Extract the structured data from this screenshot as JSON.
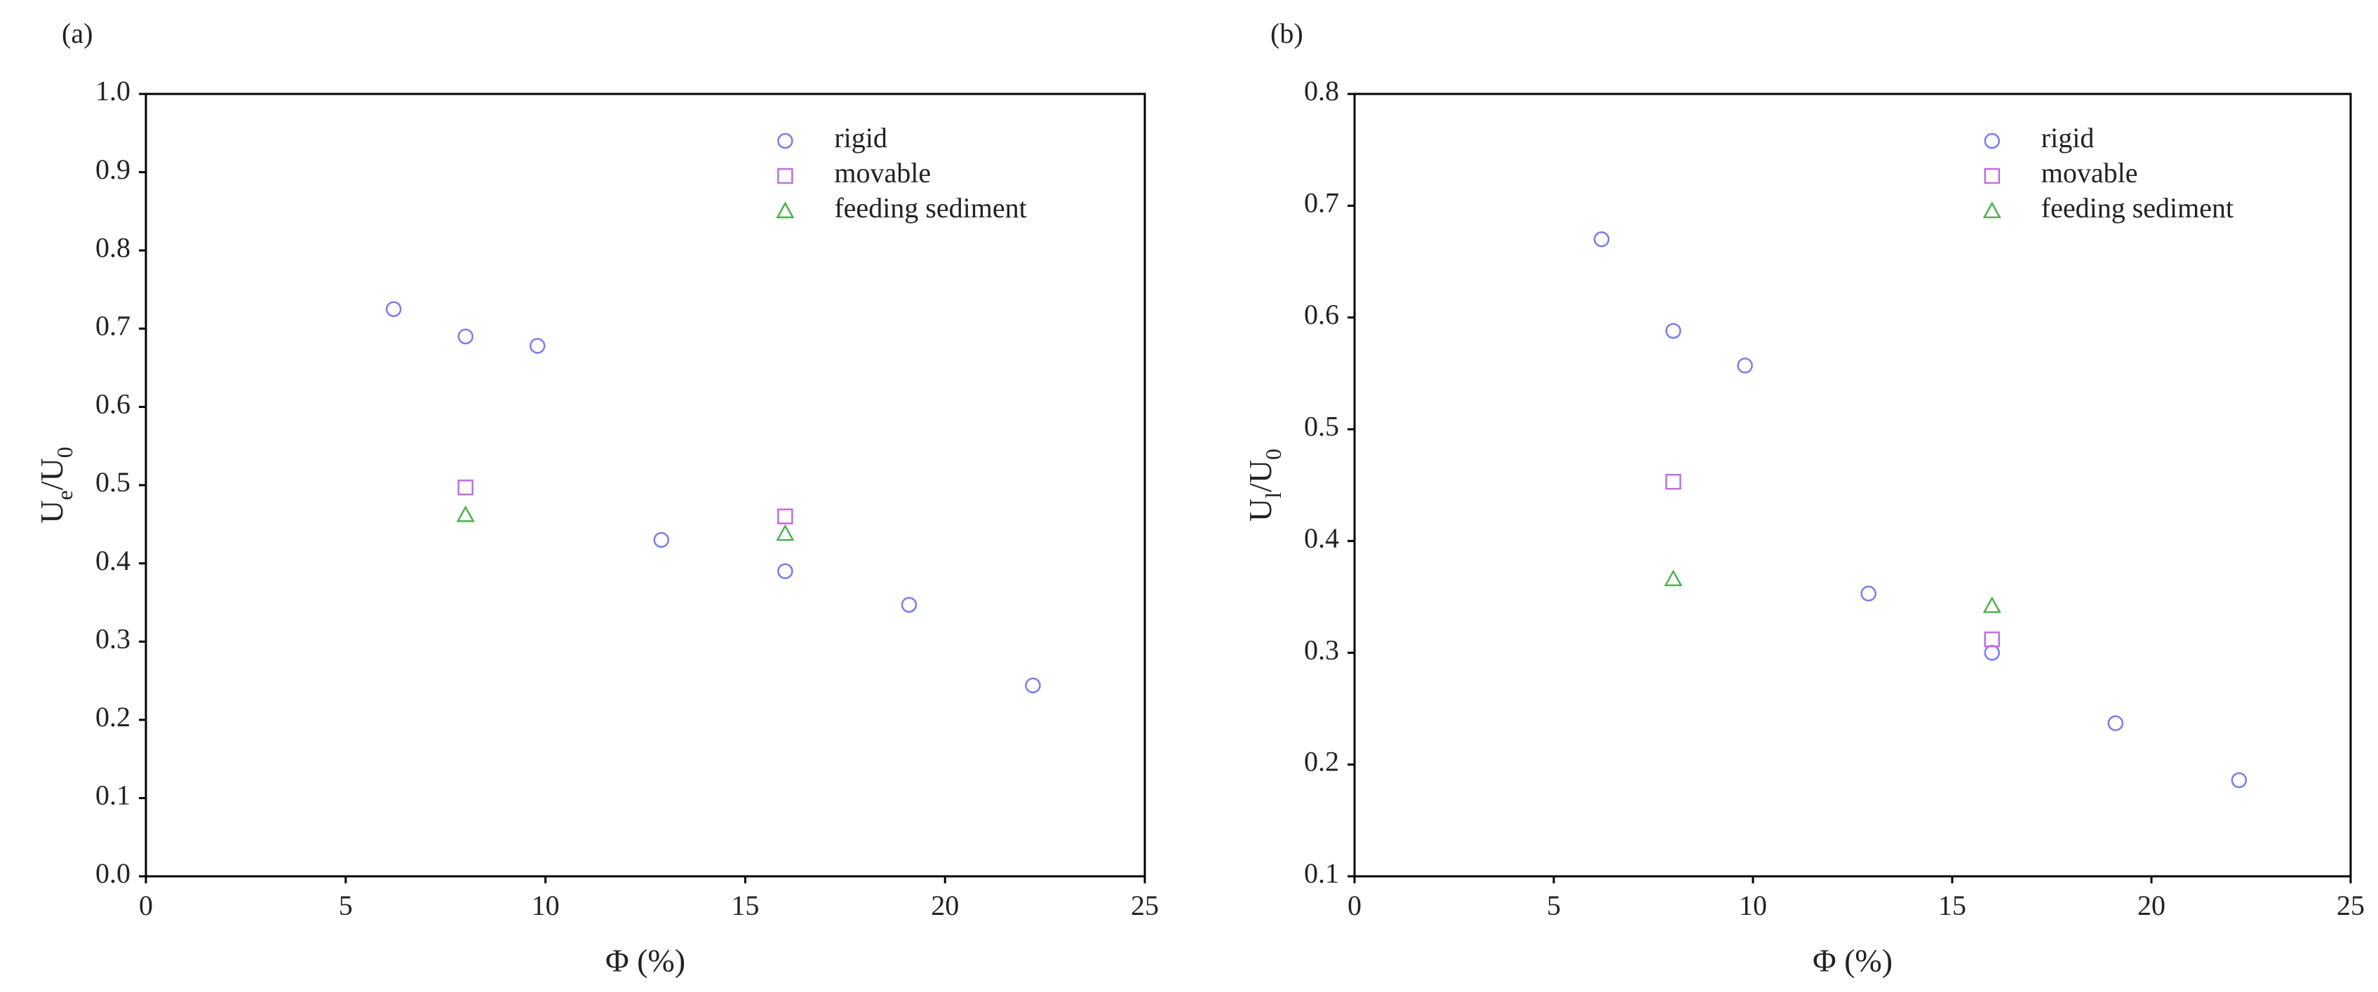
{
  "chart_data": [
    {
      "type": "scatter",
      "panel_label": "(a)",
      "xlabel": "Φ (%)",
      "ylabel": [
        "U",
        "e",
        "/U",
        "0"
      ],
      "xlim": [
        0,
        25
      ],
      "xticks": [
        0,
        5,
        10,
        15,
        20,
        25
      ],
      "ylim": [
        0,
        1
      ],
      "yticks": [
        {
          "value": 0,
          "label": "0.0"
        },
        0.1,
        0.2,
        0.3,
        0.4,
        0.5,
        0.6,
        0.7,
        0.8,
        0.9,
        {
          "value": 1,
          "label": "1.0"
        }
      ],
      "legend": "upper right",
      "series": [
        {
          "name": "rigid",
          "color": "#7b7bef",
          "marker": "circle",
          "x": [
            6.2,
            8,
            9.8,
            12.9,
            16,
            19.1,
            22.2
          ],
          "y": [
            0.725,
            0.69,
            0.678,
            0.43,
            0.39,
            0.347,
            0.244
          ]
        },
        {
          "name": "movable",
          "color": "#c06ee0",
          "marker": "square",
          "x": [
            8,
            16
          ],
          "y": [
            0.497,
            0.46
          ]
        },
        {
          "name": "feeding sediment",
          "color": "#4fb04f",
          "marker": "triangle",
          "x": [
            8,
            16
          ],
          "y": [
            0.462,
            0.438
          ]
        }
      ]
    },
    {
      "type": "scatter",
      "panel_label": "(b)",
      "xlabel": "Φ (%)",
      "ylabel": [
        "U",
        "l",
        "/U",
        "0"
      ],
      "xlim": [
        0,
        25
      ],
      "xticks": [
        0,
        5,
        10,
        15,
        20,
        25
      ],
      "ylim": [
        0.1,
        0.8
      ],
      "yticks": [
        0.1,
        0.2,
        0.3,
        0.4,
        0.5,
        0.6,
        0.7,
        0.8
      ],
      "legend": "upper right",
      "series": [
        {
          "name": "rigid",
          "color": "#7b7bef",
          "marker": "circle",
          "x": [
            6.2,
            8,
            9.8,
            12.9,
            16,
            19.1,
            22.2
          ],
          "y": [
            0.67,
            0.588,
            0.557,
            0.353,
            0.3,
            0.237,
            0.186
          ]
        },
        {
          "name": "movable",
          "color": "#c06ee0",
          "marker": "square",
          "x": [
            8,
            16
          ],
          "y": [
            0.453,
            0.312
          ]
        },
        {
          "name": "feeding sediment",
          "color": "#4fb04f",
          "marker": "triangle",
          "x": [
            8,
            16
          ],
          "y": [
            0.366,
            0.342
          ]
        }
      ]
    }
  ]
}
